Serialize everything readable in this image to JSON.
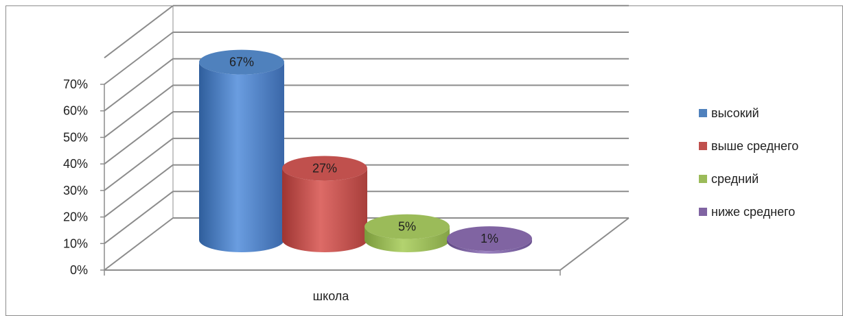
{
  "chart_data": {
    "type": "bar",
    "categories": [
      "школа"
    ],
    "series": [
      {
        "name": "высокий",
        "values": [
          67
        ],
        "label": "67%",
        "color": "#4f81bd"
      },
      {
        "name": "выше среднего",
        "values": [
          27
        ],
        "label": "27%",
        "color": "#c0504d"
      },
      {
        "name": "средний",
        "values": [
          5
        ],
        "label": "5%",
        "color": "#9bbb59"
      },
      {
        "name": "ниже среднего",
        "values": [
          1
        ],
        "label": "1%",
        "color": "#8064a2"
      }
    ],
    "y_ticks": [
      "0%",
      "10%",
      "20%",
      "30%",
      "40%",
      "50%",
      "60%",
      "70%"
    ],
    "ylim": [
      0,
      70
    ],
    "y_unit": "%",
    "grid": true,
    "legend_position": "right",
    "shape": "3d-cylinder"
  }
}
